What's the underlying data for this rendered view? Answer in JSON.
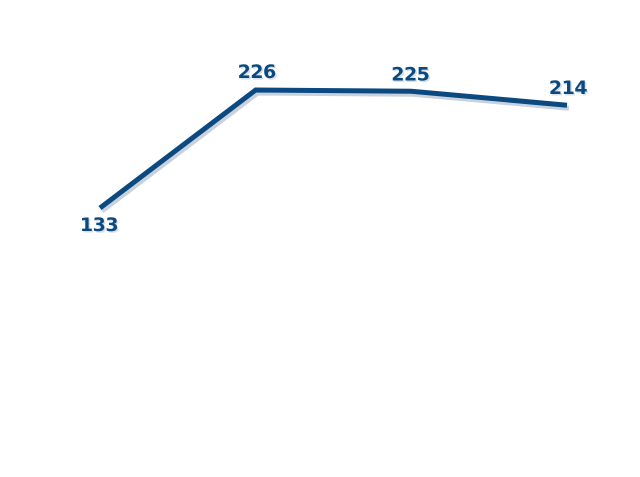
{
  "chart_data": {
    "type": "line",
    "x": [
      0,
      1,
      2,
      3
    ],
    "series": [
      {
        "values": [
          133,
          226,
          225,
          214
        ],
        "color": "#0b4a80"
      }
    ],
    "data_labels": [
      "133",
      "226",
      "225",
      "214"
    ],
    "ylim": [
      0,
      260
    ],
    "grid": false,
    "legend": false,
    "title": "",
    "xlabel": "",
    "ylabel": ""
  }
}
